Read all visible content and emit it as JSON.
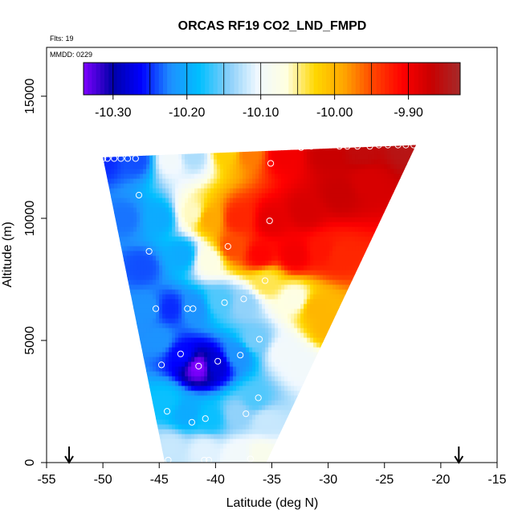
{
  "chart_data": {
    "type": "heatmap",
    "title": "ORCAS RF19 CO2_LND_FMPD",
    "annotations": [
      "Flts: 19",
      "MMDD: 0229"
    ],
    "xlabel": "Latitude (deg N)",
    "ylabel": "Altitude (m)",
    "xlim": [
      -55,
      -15
    ],
    "ylim": [
      0,
      17000
    ],
    "xticks": [
      -55,
      -50,
      -45,
      -40,
      -35,
      -30,
      -25,
      -20,
      -15
    ],
    "yticks": [
      0,
      5000,
      10000,
      15000
    ],
    "colorbar": {
      "min": -10.34,
      "max": -9.83,
      "ticks": [
        -10.3,
        -10.2,
        -10.1,
        -10.0,
        -9.9
      ],
      "tick_labels": [
        "-10.30",
        "-10.20",
        "-10.10",
        "-10.00",
        "-9.90"
      ],
      "colors": [
        "#7f00ff",
        "#0000a8",
        "#0000ff",
        "#1e90ff",
        "#00bfff",
        "#87cefa",
        "#f0f8ff",
        "#ffffe0",
        "#ffd700",
        "#ffa500",
        "#ff4500",
        "#ff0000",
        "#c80000",
        "#a52a2a"
      ]
    },
    "domain_polygon": [
      [
        -50,
        12500
      ],
      [
        -22.2,
        13000
      ],
      [
        -35.5,
        0
      ],
      [
        -44.5,
        0
      ]
    ],
    "field_points": [
      [
        -50,
        12400,
        -10.25
      ],
      [
        -47,
        12400,
        -10.24
      ],
      [
        -44,
        12400,
        -10.1
      ],
      [
        -42,
        12600,
        -10.13
      ],
      [
        -39,
        12800,
        -10.02
      ],
      [
        -37,
        12700,
        -9.97
      ],
      [
        -34,
        12600,
        -9.9
      ],
      [
        -30,
        12700,
        -9.87
      ],
      [
        -27,
        12800,
        -9.86
      ],
      [
        -23,
        12900,
        -9.85
      ],
      [
        -48,
        10000,
        -10.23
      ],
      [
        -45,
        10000,
        -10.2
      ],
      [
        -42,
        10200,
        -10.06
      ],
      [
        -40.5,
        10000,
        -9.99
      ],
      [
        -38,
        10000,
        -9.93
      ],
      [
        -35,
        9900,
        -9.89
      ],
      [
        -32,
        10300,
        -9.88
      ],
      [
        -29,
        11000,
        -9.87
      ],
      [
        -26.5,
        11500,
        -9.88
      ],
      [
        -46.5,
        8000,
        -10.24
      ],
      [
        -43,
        8500,
        -10.2
      ],
      [
        -40.5,
        8300,
        -10.07
      ],
      [
        -38.5,
        8800,
        -9.95
      ],
      [
        -36,
        8500,
        -9.91
      ],
      [
        -33,
        8500,
        -9.9
      ],
      [
        -30.5,
        8700,
        -9.92
      ],
      [
        -29,
        8500,
        -9.93
      ],
      [
        -46,
        6300,
        -10.22
      ],
      [
        -44,
        6300,
        -10.25
      ],
      [
        -42,
        6300,
        -10.22
      ],
      [
        -39.5,
        6600,
        -10.16
      ],
      [
        -37.5,
        6500,
        -10.14
      ],
      [
        -35.5,
        7400,
        -10.04
      ],
      [
        -33,
        6700,
        -10.07
      ],
      [
        -31,
        6300,
        -10.0
      ],
      [
        -30,
        5600,
        -10.0
      ],
      [
        -45,
        5000,
        -10.22
      ],
      [
        -43,
        4400,
        -10.26
      ],
      [
        -41.5,
        3900,
        -10.34
      ],
      [
        -40,
        4000,
        -10.28
      ],
      [
        -38,
        4400,
        -10.22
      ],
      [
        -36.5,
        5000,
        -10.15
      ],
      [
        -34,
        4500,
        -10.1
      ],
      [
        -32.5,
        4000,
        -10.1
      ],
      [
        -44.5,
        2500,
        -10.18
      ],
      [
        -42.5,
        2000,
        -10.2
      ],
      [
        -40.5,
        1800,
        -10.18
      ],
      [
        -38,
        2000,
        -10.14
      ],
      [
        -36.5,
        2600,
        -10.16
      ],
      [
        -35.5,
        1700,
        -10.12
      ],
      [
        -44,
        600,
        -10.12
      ],
      [
        -41,
        500,
        -10.11
      ],
      [
        -38,
        300,
        -10.1
      ],
      [
        -36,
        300,
        -10.08
      ]
    ],
    "sample_points": [
      [
        -50,
        12450
      ],
      [
        -49.6,
        12450
      ],
      [
        -49,
        12450
      ],
      [
        -48.4,
        12450
      ],
      [
        -47.8,
        12450
      ],
      [
        -47.1,
        12450
      ],
      [
        -35.1,
        12250
      ],
      [
        -32.4,
        12900
      ],
      [
        -31.5,
        12950
      ],
      [
        -29,
        12950
      ],
      [
        -28.3,
        12950
      ],
      [
        -27.4,
        12950
      ],
      [
        -26.3,
        12950
      ],
      [
        -25.5,
        13000
      ],
      [
        -24.7,
        13000
      ],
      [
        -23.8,
        13000
      ],
      [
        -23.1,
        13000
      ],
      [
        -22.4,
        13000
      ],
      [
        -46.8,
        10950
      ],
      [
        -35.2,
        9900
      ],
      [
        -38.9,
        8850
      ],
      [
        -45.9,
        8650
      ],
      [
        -35.6,
        7450
      ],
      [
        -37.5,
        6700
      ],
      [
        -39.2,
        6550
      ],
      [
        -45.3,
        6300
      ],
      [
        -42.5,
        6300
      ],
      [
        -42,
        6300
      ],
      [
        -36.1,
        5050
      ],
      [
        -43.1,
        4450
      ],
      [
        -37.8,
        4400
      ],
      [
        -39.8,
        4150
      ],
      [
        -44.8,
        4000
      ],
      [
        -41.5,
        3950
      ],
      [
        -36.2,
        2650
      ],
      [
        -44.3,
        2100
      ],
      [
        -37.3,
        2000
      ],
      [
        -40.9,
        1800
      ],
      [
        -42.1,
        1650
      ],
      [
        -44.2,
        100
      ],
      [
        -41,
        100
      ],
      [
        -40.6,
        100
      ],
      [
        -36.9,
        150
      ]
    ],
    "edge_markers_lat": [
      -53,
      -18.4
    ]
  }
}
